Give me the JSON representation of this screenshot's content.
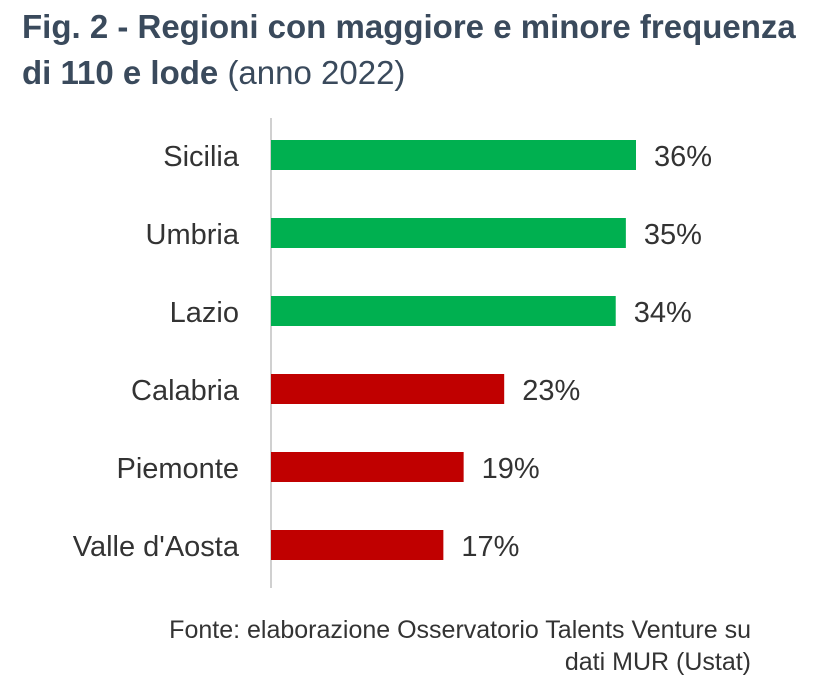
{
  "title": {
    "bold": "Fig. 2 - Regioni con maggiore e minore frequenza di 110 e lode",
    "light": "(anno 2022)"
  },
  "colors": {
    "top": "#00b050",
    "bottom": "#c00000",
    "axis": "#d0d0d0",
    "text": "#333333"
  },
  "chart_data": {
    "type": "bar",
    "orientation": "horizontal",
    "categories": [
      "Sicilia",
      "Umbria",
      "Lazio",
      "Calabria",
      "Piemonte",
      "Valle d'Aosta"
    ],
    "values": [
      36,
      35,
      34,
      23,
      19,
      17
    ],
    "labels": [
      "36%",
      "35%",
      "34%",
      "23%",
      "19%",
      "17%"
    ],
    "groups": [
      "top",
      "top",
      "top",
      "bottom",
      "bottom",
      "bottom"
    ],
    "unit": "%",
    "xlim": [
      0,
      36
    ]
  },
  "source": {
    "line1": "Fonte: elaborazione Osservatorio Talents Venture su",
    "line2": "dati MUR (Ustat)"
  }
}
